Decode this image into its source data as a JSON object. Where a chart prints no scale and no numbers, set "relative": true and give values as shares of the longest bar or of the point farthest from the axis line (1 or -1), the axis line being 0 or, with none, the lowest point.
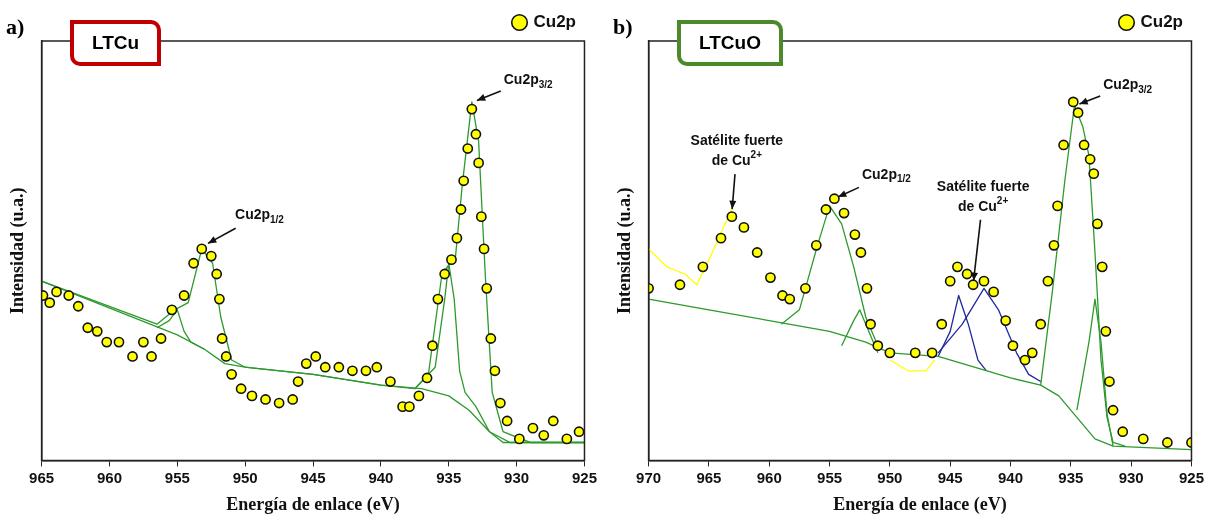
{
  "chart_data": [
    {
      "type": "line",
      "title": "LTCu",
      "xlabel": "Energía de enlace (eV)",
      "ylabel": "Intensidad (u.a.)",
      "relative": true,
      "xlim": [
        965,
        925
      ],
      "xticks": [
        965,
        960,
        955,
        950,
        945,
        940,
        935,
        930,
        925
      ],
      "legend": "top right",
      "annotations": [
        "a)",
        {
          "text": "Cu2p$_{1/2}$",
          "x": 953.0,
          "y": 0.6
        },
        {
          "text": "Cu2p$_{3/2}$",
          "x": 933.2,
          "y": 1.0
        }
      ],
      "series": [
        {
          "name": "Cu2p",
          "type": "scatter",
          "marker": "circle",
          "color": "#ffff00",
          "x": [
            964.9,
            964.4,
            963.9,
            963.0,
            962.3,
            961.6,
            960.9,
            960.2,
            959.3,
            958.3,
            957.5,
            956.9,
            956.2,
            955.4,
            954.5,
            953.8,
            953.2,
            952.5,
            952.1,
            951.9,
            951.7,
            951.4,
            951.0,
            950.3,
            949.5,
            948.5,
            947.5,
            946.5,
            946.1,
            945.5,
            944.8,
            944.1,
            943.1,
            942.1,
            941.1,
            940.3,
            939.3,
            938.4,
            937.9,
            937.2,
            936.6,
            936.2,
            935.8,
            935.3,
            934.8,
            934.4,
            934.1,
            933.9,
            933.6,
            933.3,
            933.0,
            932.8,
            932.6,
            932.4,
            932.2,
            931.9,
            931.6,
            931.2,
            930.7,
            929.8,
            928.8,
            928.0,
            927.3,
            926.3,
            925.4
          ],
          "values": [
            0.46,
            0.44,
            0.47,
            0.46,
            0.43,
            0.37,
            0.36,
            0.33,
            0.33,
            0.29,
            0.33,
            0.29,
            0.34,
            0.42,
            0.46,
            0.55,
            0.59,
            0.57,
            0.52,
            0.45,
            0.34,
            0.29,
            0.24,
            0.2,
            0.18,
            0.17,
            0.16,
            0.17,
            0.22,
            0.27,
            0.29,
            0.26,
            0.26,
            0.25,
            0.25,
            0.26,
            0.22,
            0.15,
            0.15,
            0.18,
            0.23,
            0.32,
            0.45,
            0.52,
            0.56,
            0.62,
            0.7,
            0.78,
            0.87,
            0.98,
            0.91,
            0.83,
            0.68,
            0.59,
            0.48,
            0.34,
            0.25,
            0.16,
            0.11,
            0.06,
            0.09,
            0.07,
            0.11,
            0.06,
            0.08
          ]
        },
        {
          "color": "#2e9a2e",
          "x": [
            965,
            956.5,
            955.2,
            954.2,
            953.2,
            952.4,
            951.8,
            951.0,
            950,
            945,
            940,
            937.5,
            936.5,
            935.5,
            934.5,
            934,
            933.3,
            932.8,
            932.3,
            931.8,
            931.0,
            929,
            925
          ],
          "values": [
            0.5,
            0.38,
            0.42,
            0.44,
            0.59,
            0.55,
            0.4,
            0.28,
            0.26,
            0.24,
            0.21,
            0.2,
            0.24,
            0.52,
            0.57,
            0.77,
            1.0,
            0.89,
            0.51,
            0.19,
            0.08,
            0.05,
            0.05
          ]
        },
        {
          "color": "#2e9a2e",
          "x": [
            965,
            957,
            955,
            953,
            951.5,
            950,
            945,
            940,
            937,
            935,
            933.5,
            932,
            930.5,
            925
          ],
          "values": [
            0.5,
            0.38,
            0.35,
            0.31,
            0.27,
            0.26,
            0.24,
            0.21,
            0.2,
            0.18,
            0.14,
            0.08,
            0.05,
            0.05
          ]
        },
        {
          "color": "#2e9a2e",
          "x": [
            956.5,
            955.6,
            955.0,
            954.5,
            954.0,
            953.0
          ],
          "values": [
            0.37,
            0.39,
            0.42,
            0.36,
            0.33,
            0.31
          ]
        },
        {
          "color": "#2e9a2e",
          "x": [
            937.5,
            936,
            935.3,
            935,
            934.6,
            934.2,
            933.8,
            933,
            932,
            931,
            925
          ],
          "values": [
            0.2,
            0.26,
            0.45,
            0.55,
            0.45,
            0.25,
            0.19,
            0.15,
            0.08,
            0.05,
            0.05
          ]
        }
      ]
    },
    {
      "type": "line",
      "title": "LTCuO",
      "xlabel": "Energía de enlace (eV)",
      "ylabel": "Intensidad (u.a.)",
      "relative": true,
      "xlim": [
        970,
        925
      ],
      "xticks": [
        970,
        965,
        960,
        955,
        950,
        945,
        940,
        935,
        930,
        925
      ],
      "legend": "top right",
      "annotations": [
        "b)",
        {
          "text": "Satélite fuerte de Cu$^{2+}$",
          "x": 963.1,
          "y": 0.69
        },
        {
          "text": "Cu2p$_{1/2}$",
          "x": 954.6,
          "y": 0.73
        },
        {
          "text": "Satélite fuerte de Cu$^{2+}$",
          "x": 943.1,
          "y": 0.49
        },
        {
          "text": "Cu2p$_{3/2}$",
          "x": 934.6,
          "y": 0.99
        }
      ],
      "series": [
        {
          "name": "Cu2p",
          "type": "scatter",
          "marker": "circle",
          "color": "#ffff00",
          "x": [
            970,
            967.4,
            965.5,
            964.0,
            963.1,
            962.1,
            961.0,
            959.9,
            958.9,
            958.3,
            957.0,
            956.1,
            955.3,
            954.6,
            953.8,
            952.9,
            952.4,
            951.9,
            951.6,
            951.0,
            950.0,
            947.9,
            946.5,
            945.7,
            945.0,
            944.4,
            943.6,
            943.1,
            942.2,
            941.4,
            940.4,
            939.8,
            938.8,
            938.2,
            937.5,
            936.9,
            936.4,
            936.1,
            935.6,
            934.8,
            934.4,
            933.9,
            933.4,
            933.1,
            932.8,
            932.4,
            932.1,
            931.8,
            931.5,
            930.7,
            929,
            927,
            925
          ],
          "values": [
            0.48,
            0.49,
            0.54,
            0.62,
            0.68,
            0.65,
            0.58,
            0.51,
            0.46,
            0.45,
            0.48,
            0.6,
            0.7,
            0.73,
            0.69,
            0.63,
            0.58,
            0.48,
            0.38,
            0.32,
            0.3,
            0.3,
            0.3,
            0.38,
            0.5,
            0.54,
            0.52,
            0.49,
            0.5,
            0.47,
            0.39,
            0.32,
            0.28,
            0.3,
            0.38,
            0.5,
            0.6,
            0.71,
            0.88,
            1.0,
            0.97,
            0.88,
            0.84,
            0.8,
            0.66,
            0.54,
            0.36,
            0.22,
            0.14,
            0.08,
            0.06,
            0.05,
            0.05
          ]
        },
        {
          "color": "#ffff00",
          "x": [
            970,
            968.5,
            967,
            966,
            965,
            963,
            962,
            950,
            948.5,
            947,
            946.3
          ],
          "values": [
            0.59,
            0.54,
            0.52,
            0.49,
            0.56,
            0.71,
            null,
            0.28,
            0.25,
            0.25,
            0.28
          ]
        },
        {
          "color": "#2e9a2e",
          "x": [
            970,
            965,
            960,
            955,
            952,
            950,
            946,
            943,
            940,
            937.5,
            936,
            934.5,
            933,
            931.5,
            925
          ],
          "values": [
            0.45,
            0.42,
            0.39,
            0.36,
            0.33,
            0.3,
            0.29,
            0.26,
            0.23,
            0.21,
            0.18,
            0.12,
            0.06,
            0.04,
            0.03
          ]
        },
        {
          "color": "#2e9a2e",
          "x": [
            959,
            957.5,
            956,
            955,
            954,
            953,
            952,
            951
          ],
          "values": [
            0.38,
            0.42,
            0.6,
            0.71,
            0.66,
            0.54,
            0.4,
            0.32
          ]
        },
        {
          "color": "#2e9a2e",
          "x": [
            954,
            953,
            952.5,
            952,
            951
          ],
          "values": [
            0.32,
            0.39,
            0.42,
            0.38,
            0.3
          ]
        },
        {
          "color": "#1f2a9c",
          "x": [
            946,
            945,
            944.3,
            943.5,
            942.7,
            942
          ],
          "values": [
            0.29,
            0.36,
            0.46,
            0.38,
            0.28,
            0.25
          ]
        },
        {
          "color": "#1f2a9c",
          "x": [
            946,
            944,
            942.2,
            941,
            939.5,
            938.5,
            937.5
          ],
          "values": [
            0.3,
            0.38,
            0.48,
            0.42,
            0.3,
            0.24,
            0.22
          ]
        },
        {
          "color": "#2e9a2e",
          "x": [
            937.5,
            936.5,
            935.5,
            934.7,
            934,
            933.5,
            933,
            932.5,
            932,
            931.5,
            930.5
          ],
          "values": [
            0.21,
            0.48,
            0.78,
            0.99,
            0.93,
            0.85,
            0.58,
            0.28,
            0.12,
            0.05,
            0.04
          ]
        },
        {
          "color": "#2e9a2e",
          "x": [
            934.5,
            933.5,
            933,
            932.5,
            932,
            931.5
          ],
          "values": [
            0.14,
            0.33,
            0.45,
            0.33,
            0.13,
            0.04
          ]
        }
      ]
    }
  ]
}
